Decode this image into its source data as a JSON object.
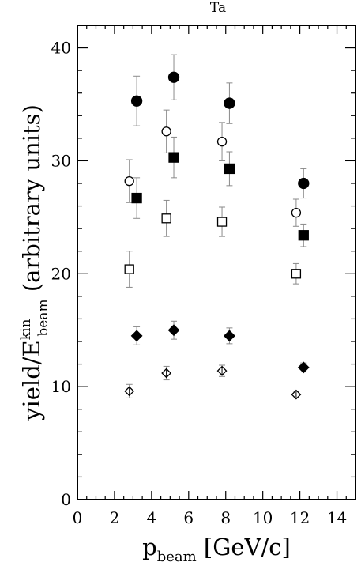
{
  "chart_data": {
    "type": "scatter",
    "title": "Ta",
    "xlabel": {
      "main": "p",
      "sub": "beam",
      "rest": " [GeV/c]"
    },
    "ylabel": {
      "main": "yield/E",
      "sup": "kin",
      "sub": "beam",
      "rest": " (arbitrary units)"
    },
    "xlim": [
      0,
      15
    ],
    "ylim": [
      0,
      42
    ],
    "x_ticks": [
      0,
      2,
      4,
      6,
      8,
      10,
      12,
      14
    ],
    "y_ticks": [
      0,
      10,
      20,
      30,
      40
    ],
    "grid": false,
    "legend": "none",
    "series": [
      {
        "marker": "filled-circle",
        "points": [
          {
            "x": 3.2,
            "y": 35.3,
            "err": 2.2
          },
          {
            "x": 5.2,
            "y": 37.4,
            "err": 2.0
          },
          {
            "x": 8.2,
            "y": 35.1,
            "err": 1.8
          },
          {
            "x": 12.2,
            "y": 28.0,
            "err": 1.3
          }
        ]
      },
      {
        "marker": "open-circle",
        "points": [
          {
            "x": 2.8,
            "y": 28.2,
            "err": 1.9
          },
          {
            "x": 4.8,
            "y": 32.6,
            "err": 1.9
          },
          {
            "x": 7.8,
            "y": 31.7,
            "err": 1.7
          },
          {
            "x": 11.8,
            "y": 25.4,
            "err": 1.2
          }
        ]
      },
      {
        "marker": "filled-square",
        "points": [
          {
            "x": 3.2,
            "y": 26.7,
            "err": 1.8
          },
          {
            "x": 5.2,
            "y": 30.3,
            "err": 1.8
          },
          {
            "x": 8.2,
            "y": 29.3,
            "err": 1.5
          },
          {
            "x": 12.2,
            "y": 23.4,
            "err": 1.0
          }
        ]
      },
      {
        "marker": "open-square",
        "points": [
          {
            "x": 2.8,
            "y": 20.4,
            "err": 1.6
          },
          {
            "x": 4.8,
            "y": 24.9,
            "err": 1.6
          },
          {
            "x": 7.8,
            "y": 24.6,
            "err": 1.3
          },
          {
            "x": 11.8,
            "y": 20.0,
            "err": 0.9
          }
        ]
      },
      {
        "marker": "filled-diamond",
        "points": [
          {
            "x": 3.2,
            "y": 14.5,
            "err": 0.8
          },
          {
            "x": 5.2,
            "y": 15.0,
            "err": 0.8
          },
          {
            "x": 8.2,
            "y": 14.5,
            "err": 0.7
          },
          {
            "x": 12.2,
            "y": 11.7,
            "err": 0.4
          }
        ]
      },
      {
        "marker": "open-diamond",
        "points": [
          {
            "x": 2.8,
            "y": 9.6,
            "err": 0.6
          },
          {
            "x": 4.8,
            "y": 11.2,
            "err": 0.6
          },
          {
            "x": 7.8,
            "y": 11.4,
            "err": 0.5
          },
          {
            "x": 11.8,
            "y": 9.3,
            "err": 0.3
          }
        ]
      }
    ]
  }
}
